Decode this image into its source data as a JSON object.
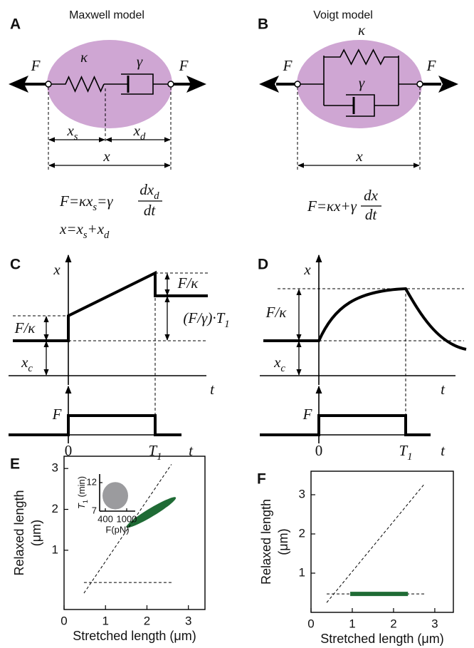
{
  "panels": {
    "a": {
      "letter": "A",
      "title": "Maxwell model",
      "force": "F",
      "spring": "κ",
      "dashpot": "γ",
      "x_s": [
        {
          "t": "x"
        },
        {
          "sub": "s"
        }
      ],
      "x_d": [
        {
          "t": "x"
        },
        {
          "sub": "d"
        }
      ],
      "x": "x",
      "equation_1": {
        "lhs": [
          {
            "t": "F=κx"
          },
          {
            "sub": "s"
          },
          {
            "t": "=γ"
          }
        ],
        "numerator": [
          {
            "t": "dx"
          },
          {
            "sub": "d"
          }
        ],
        "denominator": "dt"
      },
      "equation_2": [
        {
          "t": "x=x"
        },
        {
          "sub": "s"
        },
        {
          "t": "+x"
        },
        {
          "sub": "d"
        }
      ]
    },
    "b": {
      "letter": "B",
      "title": "Voigt model",
      "force": "F",
      "spring": "κ",
      "dashpot": "γ",
      "x": "x",
      "equation": {
        "lhs": "F=κx+γ",
        "numerator": "dx",
        "denominator": "dt"
      }
    },
    "c": {
      "letter": "C",
      "position": "x",
      "time": "t",
      "strain": "F/κ",
      "offset": [
        {
          "t": "x"
        },
        {
          "sub": "c"
        }
      ],
      "creep": [
        {
          "t": "(F/γ)·T"
        },
        {
          "sub": "1"
        }
      ],
      "force": "F",
      "start": "0",
      "end": [
        {
          "t": "T"
        },
        {
          "sub": "1"
        }
      ]
    },
    "d": {
      "letter": "D",
      "position": "x",
      "time": "t",
      "strain": "F/κ",
      "offset": [
        {
          "t": "x"
        },
        {
          "sub": "c"
        }
      ],
      "force": "F",
      "start": "0",
      "end": [
        {
          "t": "T"
        },
        {
          "sub": "1"
        }
      ]
    }
  },
  "chart_data": [
    {
      "type": "scatter",
      "letter": "E",
      "ylabel_lines": [
        "Relaxed length",
        "(μm)"
      ],
      "xlabel": "Stretched length (μm)",
      "xlim": [
        0,
        3.4
      ],
      "ylim": [
        -0.45,
        3.3
      ],
      "xticks": [
        0,
        1,
        2,
        3
      ],
      "yticks": [
        1,
        2,
        3
      ],
      "diagonal": {
        "x": [
          0.48,
          2.59
        ],
        "y": [
          -0.05,
          3.1
        ]
      },
      "baseline": {
        "x": [
          0.48,
          2.6
        ],
        "y": [
          0.21,
          0.21
        ]
      },
      "region": {
        "x": [
          1.5,
          2.7
        ],
        "y": [
          1.55,
          2.3
        ],
        "color": "#1f6b35"
      },
      "inset": {
        "ylabel": [
          {
            "t": "T"
          },
          {
            "sub": "1"
          },
          {
            "t": " (min)"
          }
        ],
        "xlabel": "F(pN)",
        "xlim": [
          240,
          1240
        ],
        "ylim": [
          7,
          13.5
        ],
        "xticks": [
          400,
          1000
        ],
        "yticks": [
          7,
          12
        ],
        "region": {
          "x": [
            320,
            1040
          ],
          "y": [
            7.3,
            12.1
          ],
          "color": "#9b9b9e"
        }
      }
    },
    {
      "type": "scatter",
      "letter": "F",
      "ylabel_lines": [
        "Relaxed length",
        "(μm)"
      ],
      "xlabel": "Stretched length (μm)",
      "xlim": [
        0,
        3.45
      ],
      "ylim": [
        0,
        3.6
      ],
      "xticks": [
        0,
        1,
        2,
        3
      ],
      "yticks": [
        1,
        2,
        3
      ],
      "diagonal": {
        "x": [
          0.38,
          2.76
        ],
        "y": [
          0.25,
          3.29
        ]
      },
      "baseline": {
        "x": [
          0.38,
          2.76
        ],
        "y": [
          0.47,
          0.47
        ]
      },
      "bar": {
        "x": [
          0.95,
          2.35
        ],
        "y": 0.47,
        "color": "#1f6b35"
      }
    }
  ]
}
